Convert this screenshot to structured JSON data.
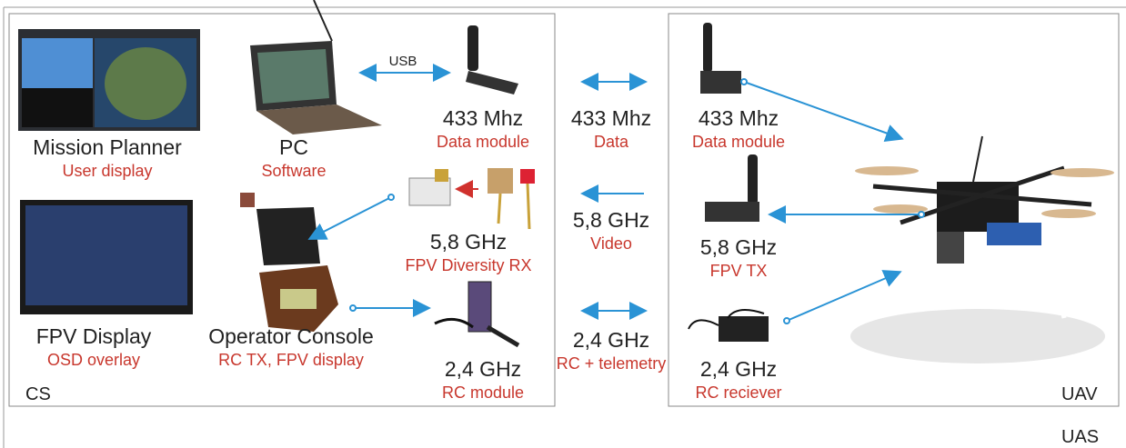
{
  "ground_station": {
    "label": "CS",
    "usb_label": "USB",
    "nodes": [
      {
        "title": "Mission Planner",
        "subtitle": "User display"
      },
      {
        "title": "PC",
        "subtitle": "Software"
      },
      {
        "title": "433 Mhz",
        "subtitle": "Data module"
      },
      {
        "title": "5,8 GHz",
        "subtitle": "FPV Diversity RX"
      },
      {
        "title": "FPV Display",
        "subtitle": "OSD overlay"
      },
      {
        "title": "Operator Console",
        "subtitle": "RC TX, FPV display"
      },
      {
        "title": "2,4 GHz",
        "subtitle": "RC module"
      }
    ]
  },
  "links": [
    {
      "title": "433 Mhz",
      "subtitle": "Data"
    },
    {
      "title": "5,8 GHz",
      "subtitle": "Video"
    },
    {
      "title": "2,4 GHz",
      "subtitle": "RC + telemetry"
    }
  ],
  "uav": {
    "label": "UAV",
    "nodes": [
      {
        "title": "433 Mhz",
        "subtitle": "Data module"
      },
      {
        "title": "5,8 GHz",
        "subtitle": "FPV TX"
      },
      {
        "title": "2,4 GHz",
        "subtitle": "RC reciever"
      }
    ]
  },
  "system_label": "UAS"
}
